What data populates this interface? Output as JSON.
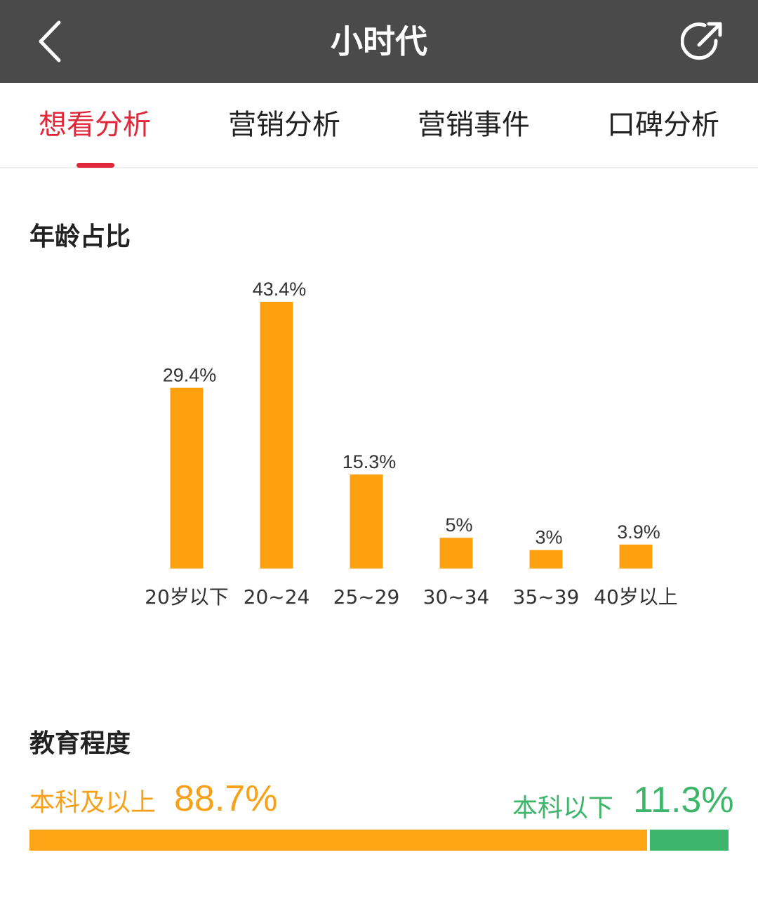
{
  "nav": {
    "title": "小时代",
    "back_icon": "chevron-left-icon",
    "share_icon": "share-icon"
  },
  "tabs": [
    {
      "label": "想看分析",
      "active": true
    },
    {
      "label": "营销分析",
      "active": false
    },
    {
      "label": "营销事件",
      "active": false
    },
    {
      "label": "口碑分析",
      "active": false
    }
  ],
  "age_section": {
    "title": "年龄占比"
  },
  "chart_data": {
    "type": "bar",
    "categories": [
      "20岁以下",
      "20~24",
      "25~29",
      "30~34",
      "35~39",
      "40岁以上"
    ],
    "values": [
      29.4,
      43.4,
      15.3,
      5,
      3,
      3.9
    ],
    "value_labels": [
      "29.4%",
      "43.4%",
      "15.3%",
      "5%",
      "3%",
      "3.9%"
    ],
    "bar_color": "#ffa00f",
    "title": "",
    "xlabel": "",
    "ylabel": "",
    "grid": false
  },
  "education": {
    "title": "教育程度",
    "left": {
      "label": "本科及以上",
      "value": "88.7%",
      "percent": 88.7,
      "color": "#ffa516"
    },
    "right": {
      "label": "本科以下",
      "value": "11.3%",
      "percent": 11.3,
      "color": "#3db56a"
    }
  },
  "colors": {
    "accent": "#e0283a",
    "nav_bg": "#4a4a4a"
  }
}
